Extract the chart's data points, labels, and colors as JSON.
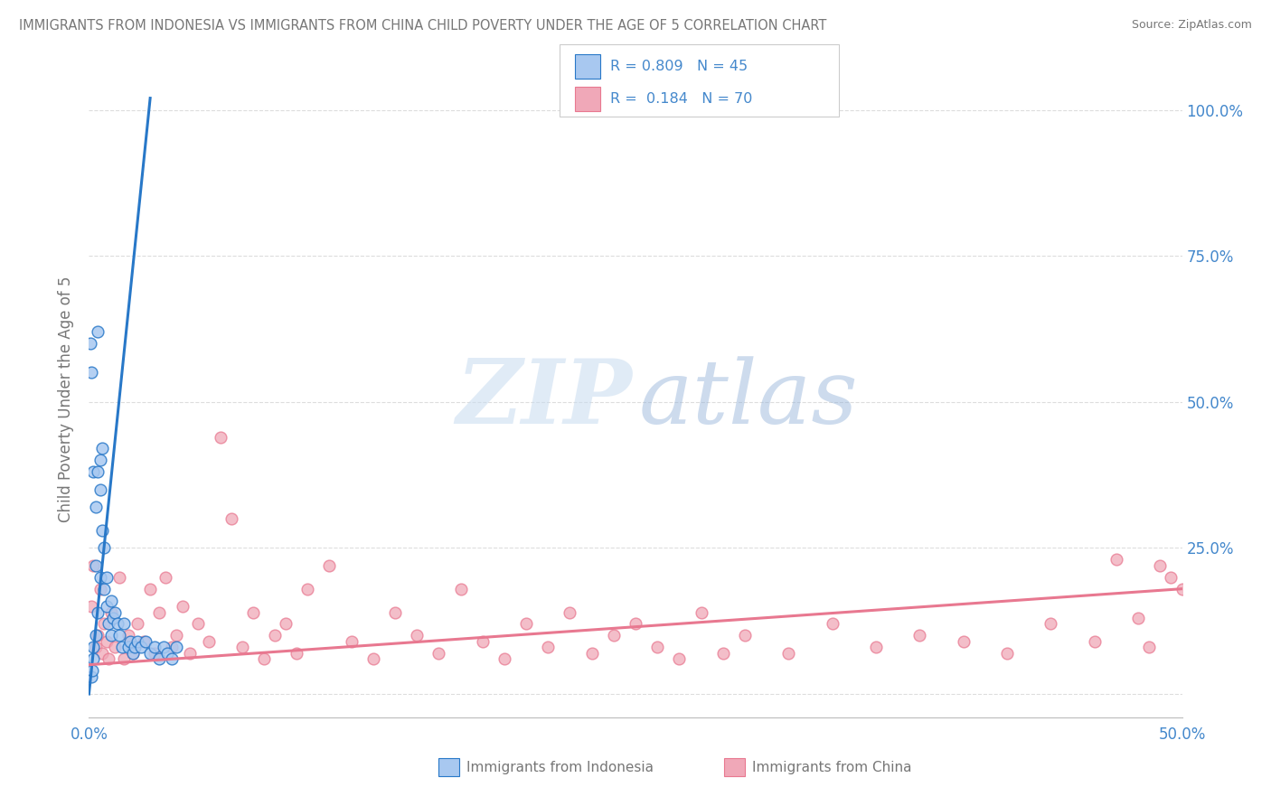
{
  "title": "IMMIGRANTS FROM INDONESIA VS IMMIGRANTS FROM CHINA CHILD POVERTY UNDER THE AGE OF 5 CORRELATION CHART",
  "source": "Source: ZipAtlas.com",
  "ylabel": "Child Poverty Under the Age of 5",
  "color_indonesia": "#a8c8f0",
  "color_indonesia_line": "#2878c8",
  "color_china": "#f0a8b8",
  "color_china_line": "#e87890",
  "color_axis": "#4488cc",
  "color_title": "#777777",
  "background_color": "#ffffff",
  "grid_color": "#dddddd",
  "legend_label_indonesia": "Immigrants from Indonesia",
  "legend_label_china": "Immigrants from China",
  "R_indonesia": "0.809",
  "N_indonesia": "45",
  "R_china": "0.184",
  "N_china": "70",
  "xlim": [
    0.0,
    0.5
  ],
  "ylim": [
    -0.04,
    1.05
  ],
  "yticks": [
    0.0,
    0.25,
    0.5,
    0.75,
    1.0
  ],
  "ytick_labels": [
    "",
    "25.0%",
    "50.0%",
    "75.0%",
    "100.0%"
  ],
  "xticks": [
    0.0,
    0.1,
    0.2,
    0.3,
    0.4,
    0.5
  ],
  "xtick_labels": [
    "0.0%",
    "",
    "",
    "",
    "",
    "50.0%"
  ],
  "indonesia_x": [
    0.0005,
    0.001,
    0.001,
    0.0015,
    0.002,
    0.002,
    0.002,
    0.003,
    0.003,
    0.003,
    0.004,
    0.004,
    0.004,
    0.005,
    0.005,
    0.005,
    0.006,
    0.006,
    0.007,
    0.007,
    0.008,
    0.008,
    0.009,
    0.01,
    0.01,
    0.011,
    0.012,
    0.013,
    0.014,
    0.015,
    0.016,
    0.018,
    0.019,
    0.02,
    0.021,
    0.022,
    0.024,
    0.026,
    0.028,
    0.03,
    0.032,
    0.034,
    0.036,
    0.038,
    0.04
  ],
  "indonesia_y": [
    0.6,
    0.03,
    0.55,
    0.04,
    0.06,
    0.08,
    0.38,
    0.1,
    0.22,
    0.32,
    0.14,
    0.38,
    0.62,
    0.2,
    0.35,
    0.4,
    0.28,
    0.42,
    0.18,
    0.25,
    0.2,
    0.15,
    0.12,
    0.1,
    0.16,
    0.13,
    0.14,
    0.12,
    0.1,
    0.08,
    0.12,
    0.08,
    0.09,
    0.07,
    0.08,
    0.09,
    0.08,
    0.09,
    0.07,
    0.08,
    0.06,
    0.08,
    0.07,
    0.06,
    0.08
  ],
  "china_x": [
    0.001,
    0.002,
    0.003,
    0.004,
    0.005,
    0.006,
    0.007,
    0.008,
    0.009,
    0.01,
    0.012,
    0.014,
    0.016,
    0.018,
    0.02,
    0.022,
    0.025,
    0.028,
    0.03,
    0.032,
    0.035,
    0.038,
    0.04,
    0.043,
    0.046,
    0.05,
    0.055,
    0.06,
    0.065,
    0.07,
    0.075,
    0.08,
    0.085,
    0.09,
    0.095,
    0.1,
    0.11,
    0.12,
    0.13,
    0.14,
    0.15,
    0.16,
    0.17,
    0.18,
    0.19,
    0.2,
    0.21,
    0.22,
    0.23,
    0.24,
    0.25,
    0.26,
    0.27,
    0.28,
    0.29,
    0.3,
    0.32,
    0.34,
    0.36,
    0.38,
    0.4,
    0.42,
    0.44,
    0.46,
    0.47,
    0.48,
    0.485,
    0.49,
    0.495,
    0.5
  ],
  "china_y": [
    0.15,
    0.22,
    0.08,
    0.1,
    0.18,
    0.07,
    0.12,
    0.09,
    0.06,
    0.14,
    0.08,
    0.2,
    0.06,
    0.1,
    0.07,
    0.12,
    0.09,
    0.18,
    0.07,
    0.14,
    0.2,
    0.08,
    0.1,
    0.15,
    0.07,
    0.12,
    0.09,
    0.44,
    0.3,
    0.08,
    0.14,
    0.06,
    0.1,
    0.12,
    0.07,
    0.18,
    0.22,
    0.09,
    0.06,
    0.14,
    0.1,
    0.07,
    0.18,
    0.09,
    0.06,
    0.12,
    0.08,
    0.14,
    0.07,
    0.1,
    0.12,
    0.08,
    0.06,
    0.14,
    0.07,
    0.1,
    0.07,
    0.12,
    0.08,
    0.1,
    0.09,
    0.07,
    0.12,
    0.09,
    0.23,
    0.13,
    0.08,
    0.22,
    0.2,
    0.18
  ],
  "indo_line_x": [
    0.0,
    0.028
  ],
  "indo_line_y": [
    0.0,
    1.02
  ],
  "china_line_x": [
    0.0,
    0.5
  ],
  "china_line_y": [
    0.05,
    0.18
  ]
}
